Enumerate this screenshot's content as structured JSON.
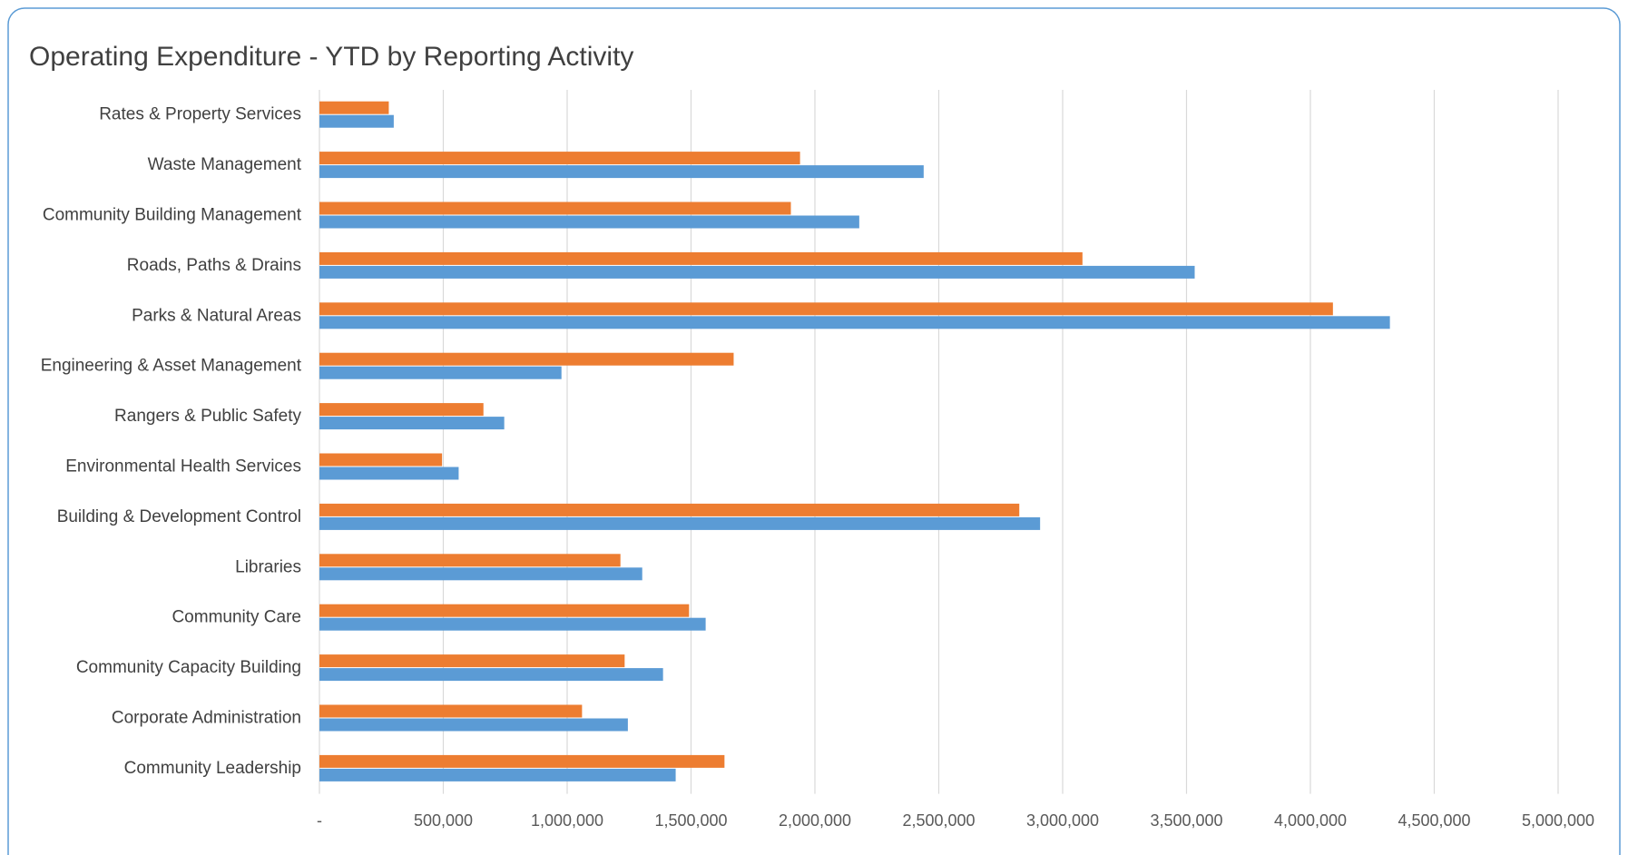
{
  "chart_data": {
    "type": "hbar",
    "title": "Operating Expenditure - YTD by Reporting Activity",
    "categories": [
      "Rates & Property Services",
      "Waste Management",
      "Community Building Management",
      "Roads, Paths & Drains",
      "Parks & Natural Areas",
      "Engineering & Asset Management",
      "Rangers & Public Safety",
      "Environmental Health Services",
      "Building & Development Control",
      "Libraries",
      "Community Care",
      "Community Capacity Building",
      "Corporate Administration",
      "Community Leadership"
    ],
    "series": [
      {
        "color": "#ed7d31",
        "values": [
          280000,
          1940000,
          1903000,
          3080000,
          4091000,
          1672000,
          662000,
          495000,
          2825000,
          1215000,
          1492000,
          1232000,
          1060000,
          1635000
        ]
      },
      {
        "color": "#5b9bd5",
        "values": [
          300000,
          2439000,
          2179000,
          3533000,
          4321000,
          977000,
          746000,
          562000,
          2909000,
          1303000,
          1559000,
          1387000,
          1245000,
          1438000
        ]
      }
    ],
    "xlim": [
      0,
      5000000
    ],
    "xticks": [
      {
        "value": 0,
        "label": "-"
      },
      {
        "value": 500000,
        "label": "500,000"
      },
      {
        "value": 1000000,
        "label": "1,000,000"
      },
      {
        "value": 1500000,
        "label": "1,500,000"
      },
      {
        "value": 2000000,
        "label": "2,000,000"
      },
      {
        "value": 2500000,
        "label": "2,500,000"
      },
      {
        "value": 3000000,
        "label": "3,000,000"
      },
      {
        "value": 3500000,
        "label": "3,500,000"
      },
      {
        "value": 4000000,
        "label": "4,000,000"
      },
      {
        "value": 4500000,
        "label": "4,500,000"
      },
      {
        "value": 5000000,
        "label": "5,000,000"
      }
    ],
    "grid": true
  }
}
